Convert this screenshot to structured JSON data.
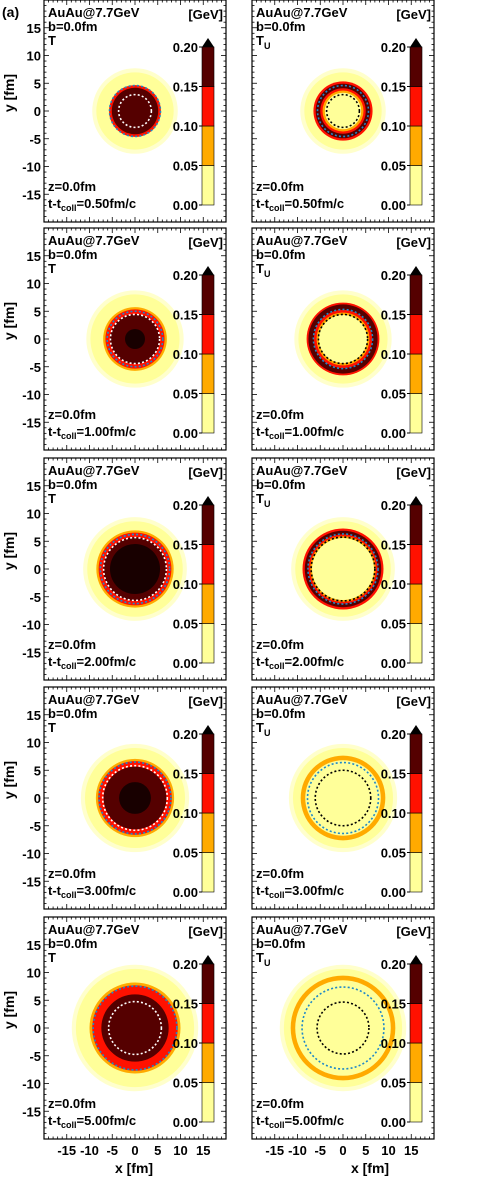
{
  "figure_label": "(a)",
  "axes": {
    "xlabel": "x [fm]",
    "ylabel": "y [fm]",
    "xlim": [
      -20,
      20
    ],
    "ylim": [
      -20,
      20
    ],
    "xticks": [
      -15,
      -10,
      -5,
      0,
      5,
      10,
      15
    ],
    "yticks": [
      -15,
      -10,
      -5,
      0,
      5,
      10,
      15
    ]
  },
  "colorbar": {
    "unit": "[GeV]",
    "ticks": [
      "0.00",
      "0.05",
      "0.10",
      "0.15",
      "0.20"
    ],
    "levels": [
      0.0,
      0.05,
      0.1,
      0.15,
      0.2
    ],
    "colors": [
      "#ffff99",
      "#ffaa00",
      "#ff1100",
      "#550000"
    ],
    "extend": "max"
  },
  "colors": {
    "pale": "#ffff99",
    "orange": "#ffaa00",
    "red": "#ff1100",
    "darkred": "#550000",
    "darkest": "#180000",
    "outer_halo": "#ffffcc",
    "blue_contour": "#1e88c8"
  },
  "chart_data": [
    {
      "type": "heatmap",
      "system": "AuAu@7.7GeV",
      "b": "b=0.0fm",
      "quantity": "T",
      "quantity_main": "T",
      "quantity_sub": "",
      "z": "z=0.0fm",
      "time": "t-t",
      "time_sub": "coll",
      "time_value": "=0.50fm/c",
      "zones": [
        {
          "r": 8.5,
          "color": "#ffff99"
        },
        {
          "r": 5.7,
          "color": "#ff1100"
        },
        {
          "r": 5.1,
          "color": "#550000"
        }
      ],
      "contours": [
        {
          "r": 5.6,
          "color": "#1e88c8"
        },
        {
          "r": 3.6,
          "color": "#ffffff"
        }
      ]
    },
    {
      "type": "heatmap",
      "system": "AuAu@7.7GeV",
      "b": "b=0.0fm",
      "quantity": "TU",
      "quantity_main": "T",
      "quantity_sub": "U",
      "z": "z=0.0fm",
      "time": "t-t",
      "time_sub": "coll",
      "time_value": "=0.50fm/c",
      "zones": [
        {
          "r": 8.5,
          "color": "#ffff99"
        },
        {
          "r": 6.5,
          "color": "#ff1100"
        },
        {
          "r": 6.0,
          "color": "#550000"
        },
        {
          "r": 5.0,
          "color": "#ff1100"
        },
        {
          "r": 4.5,
          "color": "#ffaa00"
        },
        {
          "r": 4.0,
          "color": "#ffff99"
        }
      ],
      "contours": [
        {
          "r": 5.6,
          "color": "#1e88c8"
        },
        {
          "r": 3.6,
          "color": "#000000"
        }
      ]
    },
    {
      "type": "heatmap",
      "system": "AuAu@7.7GeV",
      "b": "b=0.0fm",
      "quantity": "T",
      "quantity_main": "T",
      "quantity_sub": "",
      "z": "z=0.0fm",
      "time": "t-t",
      "time_sub": "coll",
      "time_value": "=1.00fm/c",
      "zones": [
        {
          "r": 9.8,
          "color": "#ffff99"
        },
        {
          "r": 7.0,
          "color": "#ffaa00"
        },
        {
          "r": 6.5,
          "color": "#ff1100"
        },
        {
          "r": 5.5,
          "color": "#550000"
        },
        {
          "r": 2.2,
          "color": "#180000"
        }
      ],
      "contours": [
        {
          "r": 6.1,
          "color": "#1e88c8"
        },
        {
          "r": 5.4,
          "color": "#ffffff"
        }
      ]
    },
    {
      "type": "heatmap",
      "system": "AuAu@7.7GeV",
      "b": "b=0.0fm",
      "quantity": "TU",
      "quantity_main": "T",
      "quantity_sub": "U",
      "z": "z=0.0fm",
      "time": "t-t",
      "time_sub": "coll",
      "time_value": "=1.00fm/c",
      "zones": [
        {
          "r": 9.8,
          "color": "#ffff99"
        },
        {
          "r": 8.0,
          "color": "#ff1100"
        },
        {
          "r": 7.6,
          "color": "#550000"
        },
        {
          "r": 6.4,
          "color": "#ff1100"
        },
        {
          "r": 5.8,
          "color": "#ffaa00"
        },
        {
          "r": 5.3,
          "color": "#ffff99"
        }
      ],
      "contours": [
        {
          "r": 6.5,
          "color": "#1e88c8"
        },
        {
          "r": 5.4,
          "color": "#000000"
        }
      ]
    },
    {
      "type": "heatmap",
      "system": "AuAu@7.7GeV",
      "b": "b=0.0fm",
      "quantity": "T",
      "quantity_main": "T",
      "quantity_sub": "",
      "z": "z=0.0fm",
      "time": "t-t",
      "time_sub": "coll",
      "time_value": "=2.00fm/c",
      "zones": [
        {
          "r": 10.5,
          "color": "#ffff99"
        },
        {
          "r": 8.5,
          "color": "#ffaa00"
        },
        {
          "r": 8.0,
          "color": "#ff1100"
        },
        {
          "r": 7.0,
          "color": "#550000"
        },
        {
          "r": 5.5,
          "color": "#180000"
        }
      ],
      "contours": [
        {
          "r": 7.6,
          "color": "#1e88c8"
        },
        {
          "r": 6.9,
          "color": "#ffffff"
        }
      ]
    },
    {
      "type": "heatmap",
      "system": "AuAu@7.7GeV",
      "b": "b=0.0fm",
      "quantity": "TU",
      "quantity_main": "T",
      "quantity_sub": "U",
      "z": "z=0.0fm",
      "time": "t-t",
      "time_sub": "coll",
      "time_value": "=2.00fm/c",
      "zones": [
        {
          "r": 10.5,
          "color": "#ffff99"
        },
        {
          "r": 8.9,
          "color": "#ff1100"
        },
        {
          "r": 8.4,
          "color": "#550000"
        },
        {
          "r": 7.6,
          "color": "#ff1100"
        },
        {
          "r": 7.2,
          "color": "#ffaa00"
        },
        {
          "r": 6.8,
          "color": "#ffff99"
        }
      ],
      "contours": [
        {
          "r": 7.7,
          "color": "#1e88c8"
        },
        {
          "r": 7.0,
          "color": "#000000"
        }
      ]
    },
    {
      "type": "heatmap",
      "system": "AuAu@7.7GeV",
      "b": "b=0.0fm",
      "quantity": "T",
      "quantity_main": "T",
      "quantity_sub": "",
      "z": "z=0.0fm",
      "time": "t-t",
      "time_sub": "coll",
      "time_value": "=3.00fm/c",
      "zones": [
        {
          "r": 11.0,
          "color": "#ffff99"
        },
        {
          "r": 8.6,
          "color": "#ffaa00"
        },
        {
          "r": 8.1,
          "color": "#ff1100"
        },
        {
          "r": 6.9,
          "color": "#550000"
        },
        {
          "r": 3.5,
          "color": "#180000"
        }
      ],
      "contours": [
        {
          "r": 7.9,
          "color": "#1e88c8"
        },
        {
          "r": 7.1,
          "color": "#ffffff"
        }
      ]
    },
    {
      "type": "heatmap",
      "system": "AuAu@7.7GeV",
      "b": "b=0.0fm",
      "quantity": "TU",
      "quantity_main": "T",
      "quantity_sub": "U",
      "z": "z=0.0fm",
      "time": "t-t",
      "time_sub": "coll",
      "time_value": "=3.00fm/c",
      "zones": [
        {
          "r": 11.0,
          "color": "#ffff99"
        },
        {
          "r": 9.3,
          "color": "#ffaa00"
        },
        {
          "r": 8.3,
          "color": "#ffff99"
        }
      ],
      "contours": [
        {
          "r": 7.8,
          "color": "#1e88c8"
        },
        {
          "r": 6.1,
          "color": "#000000"
        }
      ]
    },
    {
      "type": "heatmap",
      "system": "AuAu@7.7GeV",
      "b": "b=0.0fm",
      "quantity": "T",
      "quantity_main": "T",
      "quantity_sub": "",
      "z": "z=0.0fm",
      "time": "t-t",
      "time_sub": "coll",
      "time_value": "=5.00fm/c",
      "zones": [
        {
          "r": 13.0,
          "color": "#ffff99"
        },
        {
          "r": 10.0,
          "color": "#ffaa00"
        },
        {
          "r": 9.4,
          "color": "#ff1100"
        },
        {
          "r": 7.4,
          "color": "#550000"
        }
      ],
      "contours": [
        {
          "r": 9.2,
          "color": "#1e88c8"
        },
        {
          "r": 5.8,
          "color": "#ffffff"
        }
      ]
    },
    {
      "type": "heatmap",
      "system": "AuAu@7.7GeV",
      "b": "b=0.0fm",
      "quantity": "TU",
      "quantity_main": "T",
      "quantity_sub": "U",
      "z": "z=0.0fm",
      "time": "t-t",
      "time_sub": "coll",
      "time_value": "=5.00fm/c",
      "zones": [
        {
          "r": 13.0,
          "color": "#ffff99"
        },
        {
          "r": 11.5,
          "color": "#ffaa00"
        },
        {
          "r": 10.5,
          "color": "#ffff99"
        }
      ],
      "contours": [
        {
          "r": 9.0,
          "color": "#1e88c8"
        },
        {
          "r": 5.7,
          "color": "#000000"
        }
      ]
    }
  ]
}
